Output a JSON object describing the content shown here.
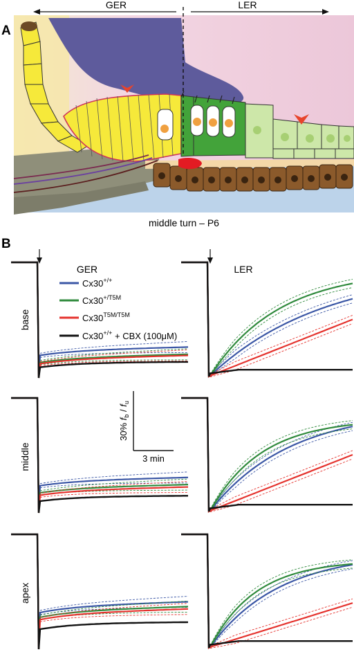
{
  "panel_a": {
    "label": "A",
    "left_region": "GER",
    "right_region": "LER",
    "caption": "middle turn – P6",
    "colors": {
      "tectorial": "#5e5b9c",
      "ger_yellow": "#f6e93a",
      "hair_green": "#43a33a",
      "ler_green": "#cde7a9",
      "basilar_brown": "#8b5a2b",
      "arrowhead_red": "#e8442b"
    }
  },
  "panel_b": {
    "label": "B",
    "col_titles": [
      "GER",
      "LER"
    ],
    "row_labels": [
      "base",
      "middle",
      "apex"
    ],
    "legend": [
      {
        "base": "Cx30",
        "sup": "+/+",
        "suffix": "",
        "color": "#3a56a5"
      },
      {
        "base": "Cx30",
        "sup": "+/T5M",
        "suffix": "",
        "color": "#2f8a3c"
      },
      {
        "base": "Cx30",
        "sup": "T5M/T5M",
        "suffix": "",
        "color": "#e5322d"
      },
      {
        "base": "Cx30",
        "sup": "+/+",
        "suffix": " + CBX (100μM)",
        "color": "#111111"
      }
    ],
    "scalebar": {
      "y_label_pct": "30%",
      "y_label_fb": "f",
      "y_label_fb_sub": "b",
      "y_label_fu": "f",
      "y_label_fu_sub": "u",
      "x_label": "3 min"
    }
  }
}
